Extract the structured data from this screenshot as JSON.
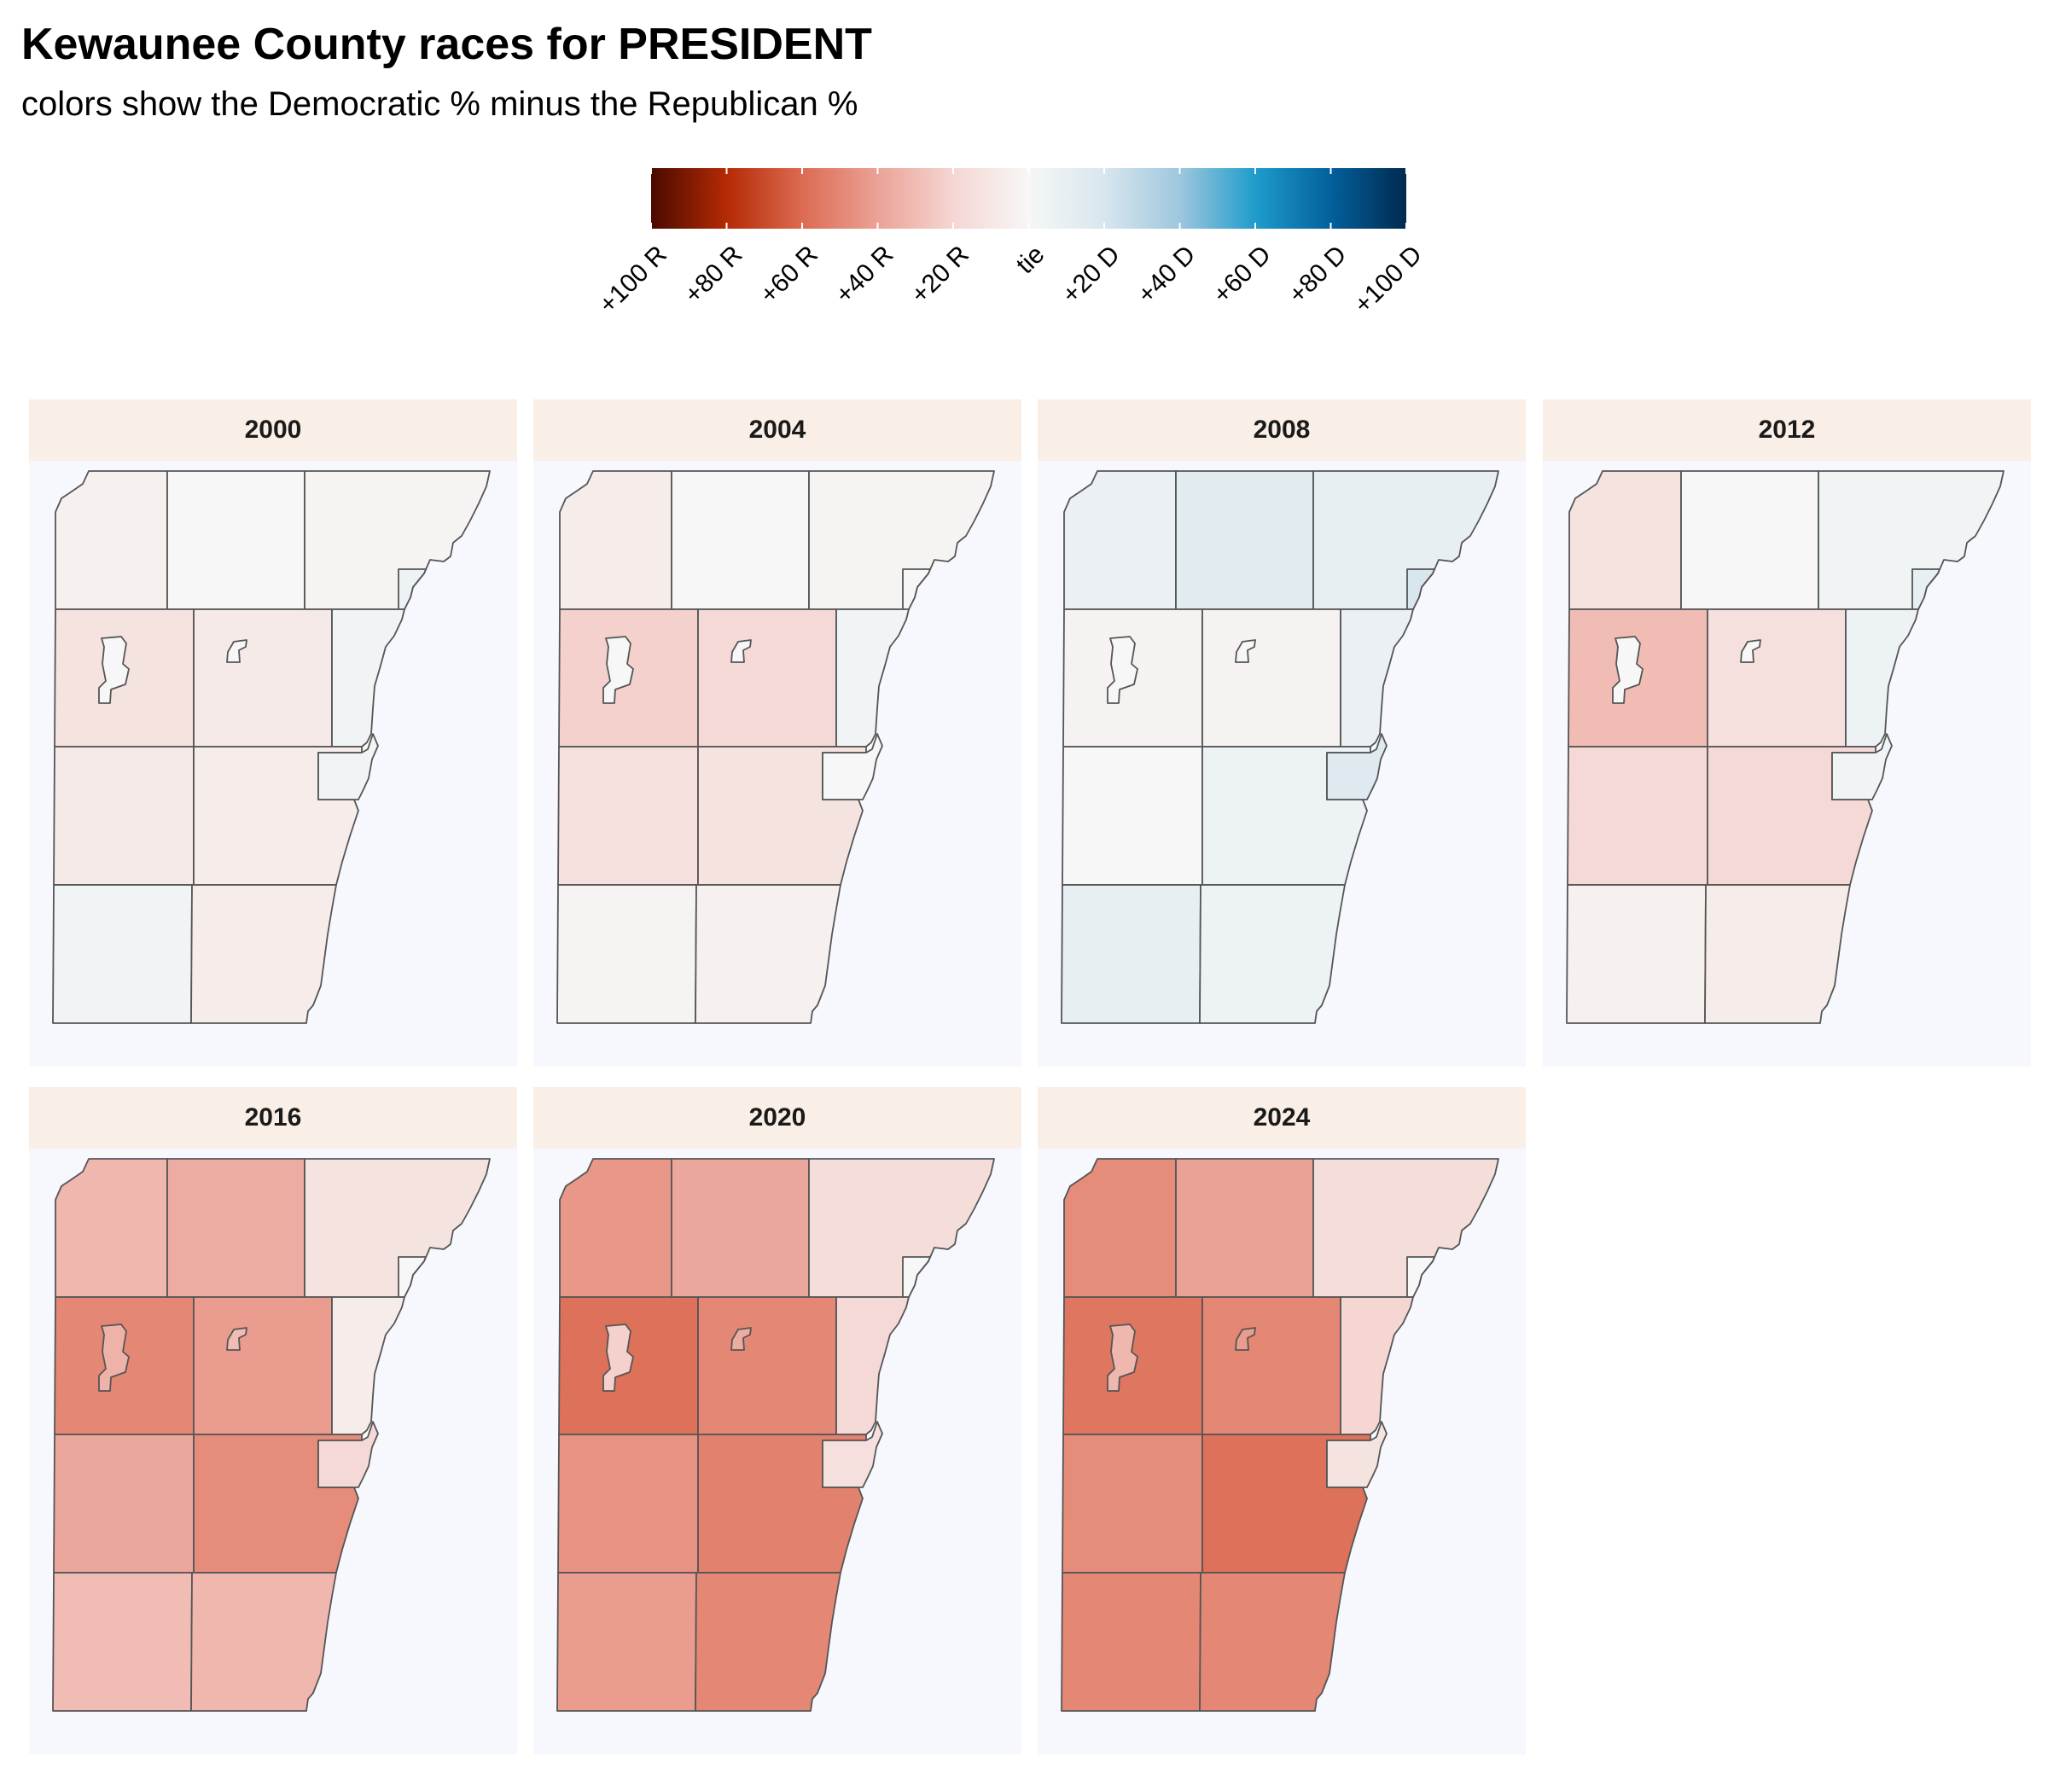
{
  "title": "Kewaunee County races for PRESIDENT",
  "subtitle": "colors show the Democratic % minus the Republican %",
  "legend": {
    "ticks": [
      {
        "value": -100,
        "label": "+100 R"
      },
      {
        "value": -80,
        "label": "+80 R"
      },
      {
        "value": -60,
        "label": "+60 R"
      },
      {
        "value": -40,
        "label": "+40 R"
      },
      {
        "value": -20,
        "label": "+20 R"
      },
      {
        "value": 0,
        "label": "tie"
      },
      {
        "value": 20,
        "label": "+20 D"
      },
      {
        "value": 40,
        "label": "+40 D"
      },
      {
        "value": 60,
        "label": "+60 D"
      },
      {
        "value": 80,
        "label": "+80 D"
      },
      {
        "value": 100,
        "label": "+100 D"
      }
    ],
    "color_stops": [
      {
        "value": -100,
        "color": "#4a0a00"
      },
      {
        "value": -80,
        "color": "#b52a05"
      },
      {
        "value": -60,
        "color": "#dc6b52"
      },
      {
        "value": -40,
        "color": "#eba296"
      },
      {
        "value": -20,
        "color": "#f5d6d2"
      },
      {
        "value": 0,
        "color": "#f6f7f6"
      },
      {
        "value": 20,
        "color": "#d8e6ee"
      },
      {
        "value": 40,
        "color": "#9ec7de"
      },
      {
        "value": 60,
        "color": "#1f9ccb"
      },
      {
        "value": 80,
        "color": "#03609c"
      },
      {
        "value": 100,
        "color": "#002a4f"
      }
    ]
  },
  "panels": [
    {
      "year": "2000",
      "margins": {
        "r1c1": -4,
        "r1c2": 0,
        "r1c3": -2,
        "notch": 6,
        "r2c1": -12,
        "r2c2": -8,
        "r2c3": 4,
        "r3c1": -8,
        "r3c2": -6,
        "city": 4,
        "r4c1": 4,
        "r4c2": -6,
        "v1": 0,
        "v2": 0
      }
    },
    {
      "year": "2004",
      "margins": {
        "r1c1": -6,
        "r1c2": 0,
        "r1c3": -2,
        "notch": 0,
        "r2c1": -22,
        "r2c2": -18,
        "r2c3": 4,
        "r3c1": -14,
        "r3c2": -12,
        "city": 0,
        "r4c1": -2,
        "r4c2": -4,
        "v1": 0,
        "v2": 0
      }
    },
    {
      "year": "2008",
      "margins": {
        "r1c1": 8,
        "r1c2": 14,
        "r1c3": 10,
        "notch": 20,
        "r2c1": -3,
        "r2c2": -3,
        "r2c3": 8,
        "r3c1": 0,
        "r3c2": 6,
        "city": 16,
        "r4c1": 10,
        "r4c2": 6,
        "v1": 0,
        "v2": 0
      }
    },
    {
      "year": "2012",
      "margins": {
        "r1c1": -12,
        "r1c2": 0,
        "r1c3": 4,
        "notch": 10,
        "r2c1": -30,
        "r2c2": -14,
        "r2c3": 6,
        "r3c1": -18,
        "r3c2": -18,
        "city": 4,
        "r4c1": -4,
        "r4c2": -6,
        "v1": 0,
        "v2": 0
      }
    },
    {
      "year": "2016",
      "margins": {
        "r1c1": -32,
        "r1c2": -36,
        "r1c3": -12,
        "notch": 0,
        "r2c1": -50,
        "r2c2": -42,
        "r2c3": -6,
        "r3c1": -38,
        "r3c2": -48,
        "city": -18,
        "r4c1": -30,
        "r4c2": -32,
        "v1": -34,
        "v2": -30
      }
    },
    {
      "year": "2020",
      "margins": {
        "r1c1": -44,
        "r1c2": -38,
        "r1c3": -16,
        "notch": 0,
        "r2c1": -58,
        "r2c2": -50,
        "r2c3": -18,
        "r3c1": -46,
        "r3c2": -52,
        "city": -14,
        "r4c1": -42,
        "r4c2": -50,
        "v1": -22,
        "v2": -36
      }
    },
    {
      "year": "2024",
      "margins": {
        "r1c1": -48,
        "r1c2": -40,
        "r1c3": -16,
        "notch": 0,
        "r2c1": -56,
        "r2c2": -50,
        "r2c3": -20,
        "r3c1": -48,
        "r3c2": -58,
        "city": -12,
        "r4c1": -50,
        "r4c2": -50,
        "v1": -32,
        "v2": -42
      }
    }
  ]
}
